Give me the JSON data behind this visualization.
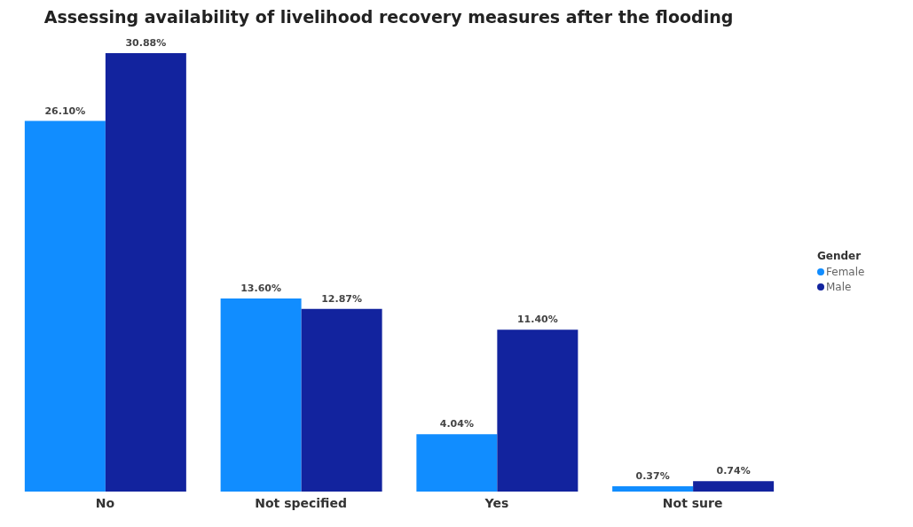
{
  "chart_data": {
    "type": "bar",
    "title": "Assessing availability of livelihood recovery measures after the flooding",
    "categories": [
      "No",
      "Not specified",
      "Yes",
      "Not sure"
    ],
    "series": [
      {
        "name": "Female",
        "color": "#118dff",
        "values": [
          26.1,
          13.6,
          4.04,
          0.37
        ],
        "value_labels": [
          "26.10%",
          "13.60%",
          "4.04%",
          "0.37%"
        ]
      },
      {
        "name": "Male",
        "color": "#12239e",
        "values": [
          30.88,
          12.87,
          11.4,
          0.74
        ],
        "value_labels": [
          "30.88%",
          "12.87%",
          "11.40%",
          "0.74%"
        ]
      }
    ],
    "legend_title": "Gender",
    "legend": "right",
    "grid": false
  }
}
